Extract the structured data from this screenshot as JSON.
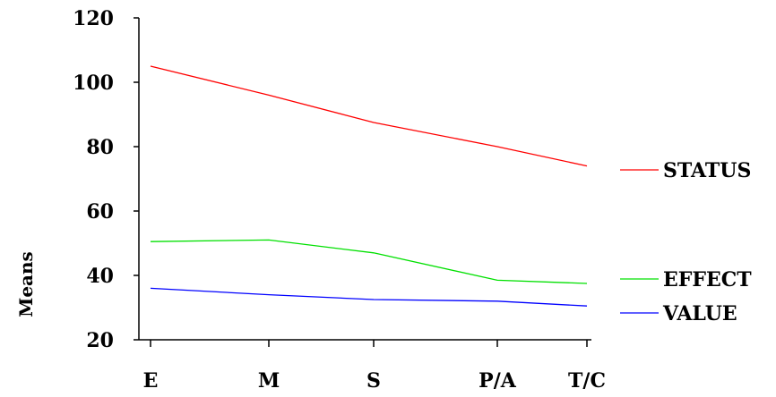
{
  "chart_data": {
    "type": "line",
    "title": "",
    "xlabel": "",
    "ylabel": "Means",
    "categories": [
      "E",
      "M",
      "S",
      "P/A",
      "T/C"
    ],
    "ylim": [
      20,
      120
    ],
    "yticks": [
      20,
      40,
      60,
      80,
      100,
      120
    ],
    "grid": false,
    "legend_position": "right",
    "series": [
      {
        "name": "STATUS",
        "color": "#ff0000",
        "values": [
          105,
          96,
          87.5,
          80,
          74
        ]
      },
      {
        "name": "EFFECT",
        "color": "#00e000",
        "values": [
          50.5,
          51,
          47,
          38.5,
          37.5
        ]
      },
      {
        "name": "VALUE",
        "color": "#0000ff",
        "values": [
          36,
          34,
          32.5,
          32,
          30.5
        ]
      }
    ]
  }
}
